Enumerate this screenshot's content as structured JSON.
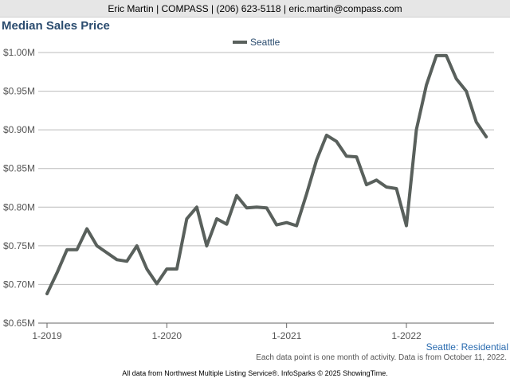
{
  "header": {
    "banner": "Eric Martin | COMPASS | (206) 623-5118 | eric.martin@compass.com"
  },
  "chart_data": {
    "type": "line",
    "title": "Median Sales Price",
    "xlabel": "",
    "ylabel": "",
    "x_ticks": [
      "1-2019",
      "1-2020",
      "1-2021",
      "1-2022"
    ],
    "y_ticks": [
      "$0.65M",
      "$0.70M",
      "$0.75M",
      "$0.80M",
      "$0.85M",
      "$0.90M",
      "$0.95M",
      "$1.00M"
    ],
    "ylim": [
      0.65,
      1.0
    ],
    "grid": true,
    "legend_position": "top-center",
    "x": [
      "2019-01",
      "2019-02",
      "2019-03",
      "2019-04",
      "2019-05",
      "2019-06",
      "2019-07",
      "2019-08",
      "2019-09",
      "2019-10",
      "2019-11",
      "2019-12",
      "2020-01",
      "2020-02",
      "2020-03",
      "2020-04",
      "2020-05",
      "2020-06",
      "2020-07",
      "2020-08",
      "2020-09",
      "2020-10",
      "2020-11",
      "2020-12",
      "2021-01",
      "2021-02",
      "2021-03",
      "2021-04",
      "2021-05",
      "2021-06",
      "2021-07",
      "2021-08",
      "2021-09",
      "2021-10",
      "2021-11",
      "2021-12",
      "2022-01",
      "2022-02",
      "2022-03",
      "2022-04",
      "2022-05",
      "2022-06",
      "2022-07",
      "2022-08",
      "2022-09"
    ],
    "series": [
      {
        "name": "Seattle",
        "color": "#59605c",
        "values": [
          0.688,
          0.715,
          0.745,
          0.745,
          0.772,
          0.75,
          0.741,
          0.732,
          0.73,
          0.75,
          0.72,
          0.701,
          0.72,
          0.72,
          0.785,
          0.8,
          0.75,
          0.785,
          0.778,
          0.815,
          0.799,
          0.8,
          0.799,
          0.777,
          0.78,
          0.776,
          0.817,
          0.861,
          0.893,
          0.885,
          0.866,
          0.865,
          0.829,
          0.835,
          0.826,
          0.824,
          0.776,
          0.9,
          0.958,
          0.996,
          0.996,
          0.966,
          0.95,
          0.91,
          0.891
        ]
      }
    ]
  },
  "footer": {
    "region_label": "Seattle: Residential",
    "activity_note": "Each data point is one month of activity. Data is from October 11, 2022.",
    "attribution": "All data from Northwest Multiple Listing Service®. InfoSparks © 2025 ShowingTime."
  }
}
